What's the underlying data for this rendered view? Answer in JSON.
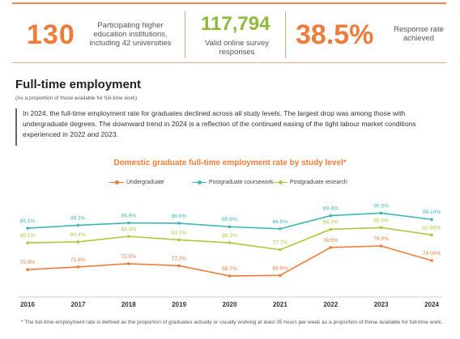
{
  "stats": [
    {
      "value": "130",
      "label": "Participating higher education institutions, including 42 universities"
    },
    {
      "value": "117,794",
      "label": "Valid online survey responses"
    },
    {
      "value": "38.5%",
      "label": "Response rate achieved"
    }
  ],
  "section": {
    "title": "Full-time employment",
    "subtitle": "(As a proportion of those available for full-time work)",
    "intro": "In 2024, the full-time employment rate for graduates declined across all study levels. The largest drop was among those with undergraduate degrees. The downward trend in 2024 is a reflection of the continued easing of the tight labour market conditions experienced in 2022 and 2023."
  },
  "chart_data": {
    "type": "line",
    "title": "Domestic graduate full-time employment rate by study level*",
    "xlabel": "",
    "ylabel": "",
    "x": [
      "2016",
      "2017",
      "2018",
      "2019",
      "2020",
      "2021",
      "2022",
      "2023",
      "2024"
    ],
    "series": [
      {
        "name": "Undergraduate",
        "color": "#f07c3a",
        "values": [
          70.9,
          71.8,
          72.9,
          72.2,
          68.7,
          68.9,
          78.5,
          79.0,
          74.0
        ],
        "labels": [
          "70.9%",
          "71.8%",
          "72.9%",
          "72.2%",
          "68.7%",
          "68.9%",
          "78.5%",
          "79.0%",
          "74.00%"
        ]
      },
      {
        "name": "Postgraduate coursework",
        "color": "#3db8b8",
        "values": [
          85.1,
          86.1,
          86.9,
          86.8,
          85.6,
          84.9,
          89.4,
          90.3,
          88.1
        ],
        "labels": [
          "85.1%",
          "86.1%",
          "86.9%",
          "86.8%",
          "85.6%",
          "84.9%",
          "89.4%",
          "90.3%",
          "88.10%"
        ]
      },
      {
        "name": "Postgraduate research",
        "color": "#a8cc3c",
        "values": [
          80.1,
          80.4,
          82.3,
          81.1,
          80.1,
          77.7,
          84.7,
          85.3,
          82.8
        ],
        "labels": [
          "80.1%",
          "80.4%",
          "82.3%",
          "81.1%",
          "80.1%",
          "77.7%",
          "84.7%",
          "85.3%",
          "82.80%"
        ]
      }
    ],
    "ylim": [
      64,
      94
    ],
    "grid": false,
    "legend": "top-center"
  },
  "footnote": "* The full-time employment rate is defined as the proportion of graduates actually or usually working at least 35 hours per week as a proportion of those available for full-time work."
}
